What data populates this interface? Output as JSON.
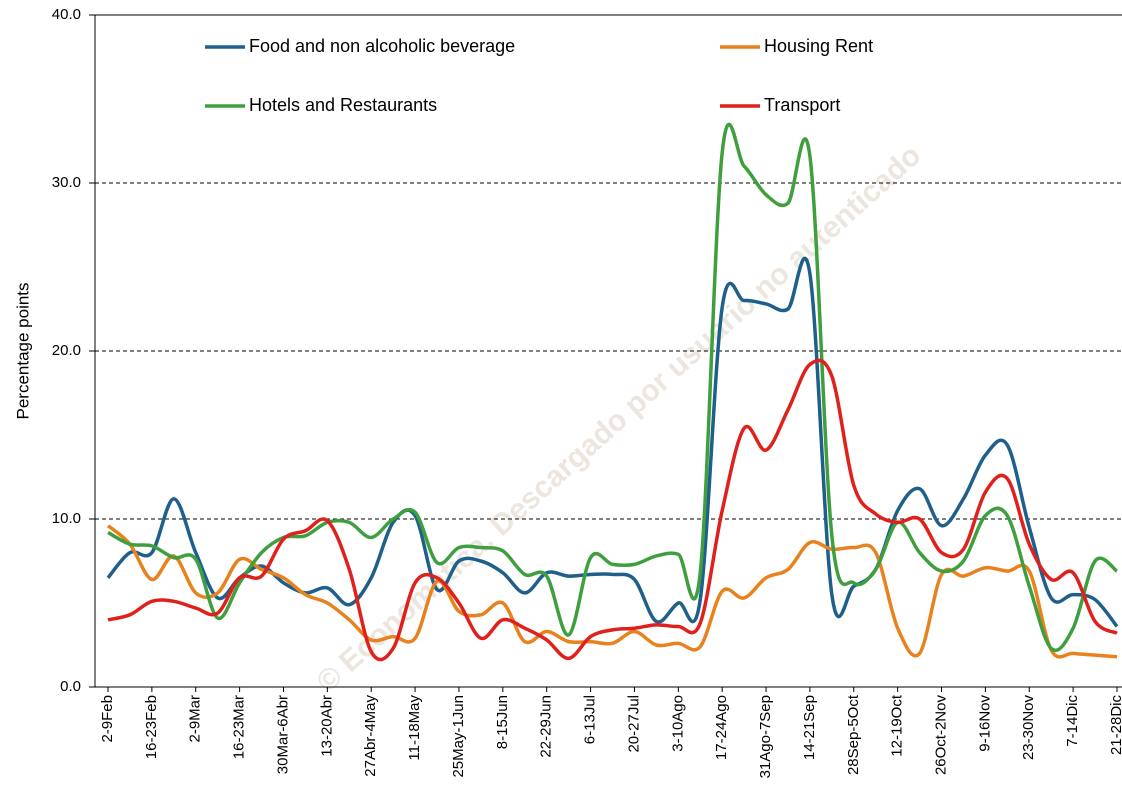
{
  "chart_data": {
    "type": "line",
    "y_label": "Percentage points",
    "watermark": "© Economatica. Descargado por usuario no autenticado",
    "categories": [
      "2-9Feb",
      null,
      "16-23Feb",
      null,
      "2-9Mar",
      null,
      "16-23Mar",
      null,
      "30Mar-6Abr",
      null,
      "13-20Abr",
      null,
      "27Abr-4May",
      null,
      "11-18May",
      null,
      "25May-1Jun",
      null,
      "8-15Jun",
      null,
      "22-29Jun",
      null,
      "6-13Jul",
      null,
      "20-27Jul",
      null,
      "3-10Ago",
      null,
      "17-24Ago",
      null,
      "31Ago-7Sep",
      null,
      "14-21Sep",
      null,
      "28Sep-5Oct",
      null,
      "12-19Oct",
      null,
      "26Oct-2Nov",
      null,
      "9-16Nov",
      null,
      "23-30Nov",
      null,
      "7-14Dic",
      null,
      "21-28Dic"
    ],
    "series": [
      {
        "name": "Food and non alcoholic beverage",
        "color": "#1f5f8b",
        "values": [
          6.5,
          8.0,
          8.0,
          11.2,
          8.0,
          5.3,
          6.5,
          7.2,
          6.2,
          5.6,
          5.9,
          4.9,
          6.5,
          9.8,
          10.2,
          5.8,
          7.5,
          7.5,
          6.8,
          5.6,
          6.8,
          6.6,
          6.7,
          6.7,
          6.4,
          3.9,
          5.0,
          5.2,
          22.6,
          23.0,
          22.8,
          22.5,
          24.6,
          5.5,
          6.0,
          7.0,
          10.5,
          11.8,
          9.6,
          11.2,
          13.8,
          14.4,
          9.5,
          5.3,
          5.5,
          5.2,
          3.6
        ]
      },
      {
        "name": "Housing Rent",
        "color": "#e8821e",
        "values": [
          9.6,
          8.5,
          6.4,
          7.8,
          5.6,
          5.6,
          7.6,
          7.0,
          6.5,
          5.5,
          5.0,
          4.0,
          2.8,
          3.0,
          2.9,
          6.3,
          4.5,
          4.3,
          5.0,
          2.7,
          3.3,
          2.7,
          2.7,
          2.6,
          3.3,
          2.5,
          2.6,
          2.4,
          5.7,
          5.3,
          6.5,
          7.0,
          8.6,
          8.2,
          8.3,
          8.0,
          3.5,
          2.0,
          6.7,
          6.6,
          7.1,
          6.9,
          6.9,
          2.2,
          2.0,
          1.9,
          1.8
        ]
      },
      {
        "name": "Hotels and Restaurants",
        "color": "#3f9f3f",
        "values": [
          9.2,
          8.5,
          8.4,
          7.7,
          7.6,
          4.1,
          6.2,
          8.0,
          8.9,
          9.0,
          9.8,
          9.8,
          8.9,
          10.0,
          10.4,
          7.4,
          8.3,
          8.3,
          8.1,
          6.7,
          6.6,
          3.1,
          7.7,
          7.3,
          7.3,
          7.8,
          7.9,
          6.8,
          31.8,
          31.0,
          29.3,
          28.8,
          31.6,
          9.0,
          6.2,
          7.0,
          9.8,
          8.0,
          6.9,
          7.5,
          10.2,
          10.2,
          6.0,
          2.3,
          3.5,
          7.5,
          6.9
        ]
      },
      {
        "name": "Transport",
        "color": "#e0201b",
        "values": [
          4.0,
          4.3,
          5.1,
          5.1,
          4.7,
          4.4,
          6.5,
          6.6,
          8.8,
          9.3,
          9.9,
          7.0,
          2.1,
          2.3,
          6.2,
          6.5,
          5.0,
          2.9,
          4.0,
          3.5,
          2.8,
          1.7,
          3.0,
          3.4,
          3.5,
          3.7,
          3.6,
          3.8,
          10.5,
          15.4,
          14.1,
          16.5,
          19.2,
          18.5,
          12.0,
          10.3,
          9.8,
          10.0,
          8.0,
          8.2,
          11.6,
          12.4,
          8.5,
          6.4,
          6.8,
          3.9,
          3.2
        ]
      }
    ],
    "ylim": [
      0,
      40
    ],
    "yticks": [
      {
        "value": 0,
        "label": "0.0"
      },
      {
        "value": 10,
        "label": "10.0"
      },
      {
        "value": 20,
        "label": "20.0"
      },
      {
        "value": 30,
        "label": "30.0"
      },
      {
        "value": 40,
        "label": "40.0"
      }
    ],
    "grid": true
  }
}
